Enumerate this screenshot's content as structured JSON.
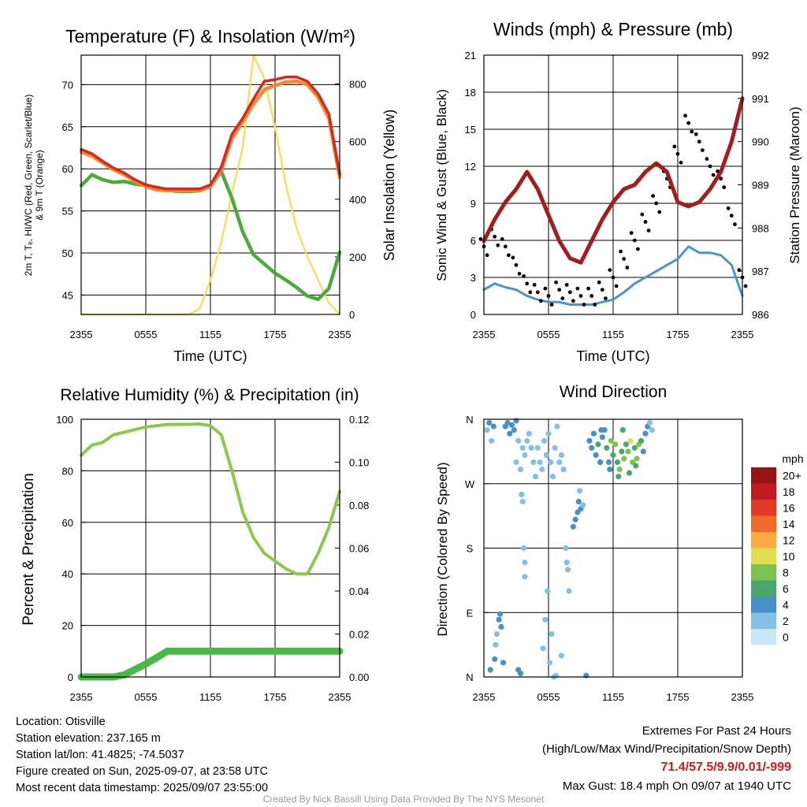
{
  "time_ticks": [
    "2355",
    "0555",
    "1155",
    "1755",
    "2355"
  ],
  "panels": {
    "temperature": {
      "title": "Temperature (F) & Insolation (W/m²)",
      "xlabel": "Time (UTC)",
      "ylabel_line1": "2m T, Tₑ, HI/WC (Red, Green, Scarlet/Blue)",
      "ylabel_line2": "& 9m T (Orange)",
      "ylabel_right": "Solar Insolation (Yellow)"
    },
    "winds": {
      "title": "Winds (mph) & Pressure (mb)",
      "xlabel": "Time (UTC)",
      "ylabel": "Sonic Wind & Gust (Blue, Black)",
      "ylabel_right": "Station Pressure (Maroon)"
    },
    "humidity": {
      "title": "Relative Humidity (%) & Precipitation (in)",
      "ylabel": "Percent & Precipitation"
    },
    "direction": {
      "title": "Wind Direction",
      "ylabel": "Direction (Colored By Speed)",
      "dir_ticks": [
        "N",
        "E",
        "S",
        "W",
        "N"
      ],
      "colorbar_title": "mph",
      "colorbar_labels": [
        "0",
        "2",
        "4",
        "6",
        "8",
        "10",
        "12",
        "14",
        "16",
        "18",
        "20+"
      ],
      "colorbar_colors": [
        "#c8e8f8",
        "#84c0e6",
        "#4a90c8",
        "#4aa66a",
        "#7cc250",
        "#e2dc50",
        "#f9ac46",
        "#f06a2a",
        "#e03a26",
        "#c01c22",
        "#961414"
      ]
    }
  },
  "chart_data": [
    {
      "type": "line",
      "title": "Temperature (F) & Insolation (W/m²)",
      "xlabel": "Time (UTC)",
      "ylabel": "2m T, Tₑ, HI/WC (Red, Green, Scarlet/Blue) & 9m T (Orange)",
      "y2label": "Solar Insolation (Yellow)",
      "ylim": [
        42.7,
        73.5
      ],
      "y2lim": [
        0,
        900
      ],
      "yticks": [
        45,
        50,
        55,
        60,
        65,
        70
      ],
      "y2ticks": [
        0,
        200,
        400,
        600,
        800
      ],
      "x": [
        0,
        1,
        2,
        3,
        4,
        5,
        6,
        7,
        8,
        9,
        10,
        11,
        12,
        13,
        14,
        15,
        16,
        17,
        18,
        19,
        20,
        21,
        22,
        23,
        24
      ],
      "series": [
        {
          "color": "#d42a20",
          "values": [
            62.3,
            61.8,
            60.9,
            60.1,
            59.5,
            58.7,
            58.1,
            57.8,
            57.6,
            57.6,
            57.6,
            57.6,
            58.1,
            60.2,
            64.1,
            66.0,
            68.3,
            70.4,
            70.6,
            70.9,
            70.9,
            70.4,
            68.9,
            66.5,
            59.4
          ]
        },
        {
          "color": "#f38a32",
          "values": [
            62.0,
            61.5,
            60.7,
            59.9,
            59.3,
            58.5,
            57.9,
            57.5,
            57.4,
            57.4,
            57.4,
            57.4,
            57.9,
            59.8,
            63.6,
            65.6,
            67.7,
            69.4,
            69.9,
            70.3,
            70.4,
            70.0,
            68.5,
            66.0,
            59.0
          ]
        },
        {
          "color": "#4aaa3c",
          "values": [
            58.0,
            59.3,
            58.7,
            58.4,
            58.5,
            58.2,
            58.0,
            57.8,
            57.5,
            57.3,
            57.3,
            57.4,
            57.9,
            59.7,
            56.5,
            52.5,
            49.8,
            48.7,
            47.6,
            46.8,
            45.9,
            44.9,
            44.5,
            45.8,
            50.1
          ]
        },
        {
          "color": "#f7dc50",
          "values": [
            0,
            0,
            0,
            0,
            0,
            0,
            0,
            0,
            0,
            0,
            0,
            20,
            120,
            250,
            420,
            580,
            900,
            820,
            650,
            450,
            300,
            200,
            120,
            40,
            0
          ]
        }
      ]
    },
    {
      "type": "line",
      "title": "Winds (mph) & Pressure (mb)",
      "xlabel": "Time (UTC)",
      "ylabel": "Sonic Wind & Gust (Blue, Black)",
      "y2label": "Station Pressure (Maroon)",
      "ylim": [
        0,
        21
      ],
      "y2lim": [
        986,
        992
      ],
      "yticks": [
        0,
        3,
        6,
        9,
        12,
        15,
        18,
        21
      ],
      "y2ticks": [
        986,
        987,
        988,
        989,
        990,
        991,
        992
      ],
      "x": [
        0,
        1,
        2,
        3,
        4,
        5,
        6,
        7,
        8,
        9,
        10,
        11,
        12,
        13,
        14,
        15,
        16,
        17,
        18,
        19,
        20,
        21,
        22,
        23,
        24
      ],
      "series": [
        {
          "color": "#4d94cc",
          "values": [
            2.0,
            2.5,
            2.2,
            2.0,
            1.5,
            1.2,
            1.0,
            1.0,
            0.8,
            0.8,
            0.8,
            1.0,
            1.2,
            1.8,
            2.5,
            3.0,
            3.5,
            4.0,
            4.5,
            5.5,
            5.0,
            5.0,
            4.8,
            4.0,
            1.5
          ]
        },
        {
          "color": "#000000",
          "values": [
            5.5,
            6.3,
            5.5,
            4.0,
            2.5,
            1.8,
            1.5,
            2.0,
            1.8,
            1.5,
            1.5,
            2.0,
            3.0,
            4.5,
            6.0,
            7.5,
            9.0,
            11.0,
            13.0,
            15.5,
            14.0,
            12.0,
            11.0,
            8.0,
            3.0
          ]
        },
        {
          "color": "#a51c1c",
          "values": [
            987.7,
            988.2,
            988.6,
            988.9,
            989.3,
            988.9,
            988.3,
            987.7,
            987.3,
            987.2,
            987.7,
            988.2,
            988.6,
            988.9,
            989.0,
            989.3,
            989.5,
            989.3,
            988.6,
            988.5,
            988.6,
            988.9,
            989.3,
            990.0,
            991.0
          ]
        }
      ]
    },
    {
      "type": "line",
      "title": "Relative Humidity (%) & Precipitation (in)",
      "ylabel": "Percent & Precipitation",
      "ylim": [
        0,
        100
      ],
      "y2lim": [
        0,
        0.12
      ],
      "yticks": [
        0,
        20,
        40,
        60,
        80,
        100
      ],
      "y2ticks": [
        0,
        0.02,
        0.04,
        0.06,
        0.08,
        0.1,
        0.12
      ],
      "x": [
        0,
        1,
        2,
        3,
        4,
        5,
        6,
        7,
        8,
        9,
        10,
        11,
        12,
        13,
        14,
        15,
        16,
        17,
        18,
        19,
        20,
        21,
        22,
        23,
        24
      ],
      "series": [
        {
          "color": "#8cc84c",
          "values": [
            86,
            90,
            91,
            94,
            95,
            96,
            97,
            97.5,
            98,
            98,
            98,
            98.2,
            97.5,
            94,
            80,
            64,
            54,
            48,
            45,
            42,
            40,
            40,
            48,
            58,
            72
          ]
        },
        {
          "color": "#4ab848",
          "values": [
            0,
            0,
            0,
            0,
            0.001,
            0.0035,
            0.006,
            0.009,
            0.012,
            0.012,
            0.012,
            0.012,
            0.012,
            0.012,
            0.012,
            0.012,
            0.012,
            0.012,
            0.012,
            0.012,
            0.012,
            0.012,
            0.012,
            0.012,
            0.012
          ]
        }
      ]
    },
    {
      "type": "scatter",
      "title": "Wind Direction",
      "ylabel": "Direction (Colored By Speed)",
      "yticks": [
        "N",
        "E",
        "S",
        "W",
        "N"
      ],
      "colorbar": {
        "title": "mph",
        "levels": [
          "0",
          "2",
          "4",
          "6",
          "8",
          "10",
          "12",
          "14",
          "16",
          "18",
          "20+"
        ]
      },
      "points": [
        {
          "x": 0.3,
          "dir": 345,
          "speed": 2
        },
        {
          "x": 0.5,
          "dir": 355,
          "speed": 4
        },
        {
          "x": 0.7,
          "dir": 330,
          "speed": 2
        },
        {
          "x": 0.9,
          "dir": 350,
          "speed": 3
        },
        {
          "x": 1.0,
          "dir": 25,
          "speed": 3
        },
        {
          "x": 1.1,
          "dir": 45,
          "speed": 2
        },
        {
          "x": 1.2,
          "dir": 60,
          "speed": 2
        },
        {
          "x": 1.4,
          "dir": 80,
          "speed": 3
        },
        {
          "x": 1.5,
          "dir": 88,
          "speed": 4
        },
        {
          "x": 1.6,
          "dir": 70,
          "speed": 3
        },
        {
          "x": 1.8,
          "dir": 20,
          "speed": 4
        },
        {
          "x": 0.6,
          "dir": 10,
          "speed": 4
        },
        {
          "x": 2.0,
          "dir": 350,
          "speed": 4
        },
        {
          "x": 2.2,
          "dir": 355,
          "speed": 3
        },
        {
          "x": 2.4,
          "dir": 340,
          "speed": 4
        },
        {
          "x": 2.6,
          "dir": 352,
          "speed": 4
        },
        {
          "x": 2.8,
          "dir": 345,
          "speed": 3
        },
        {
          "x": 3.0,
          "dir": 358,
          "speed": 4
        },
        {
          "x": 3.2,
          "dir": 10,
          "speed": 3
        },
        {
          "x": 3.4,
          "dir": 5,
          "speed": 3
        },
        {
          "x": 3.0,
          "dir": 300,
          "speed": 2
        },
        {
          "x": 3.2,
          "dir": 330,
          "speed": 2
        },
        {
          "x": 3.4,
          "dir": 290,
          "speed": 2
        },
        {
          "x": 3.6,
          "dir": 320,
          "speed": 1
        },
        {
          "x": 3.8,
          "dir": 310,
          "speed": 2
        },
        {
          "x": 4.0,
          "dir": 330,
          "speed": 2
        },
        {
          "x": 4.2,
          "dir": 340,
          "speed": 2
        },
        {
          "x": 4.4,
          "dir": 320,
          "speed": 1
        },
        {
          "x": 3.5,
          "dir": 255,
          "speed": 1
        },
        {
          "x": 3.6,
          "dir": 245,
          "speed": 1
        },
        {
          "x": 3.7,
          "dir": 180,
          "speed": 1
        },
        {
          "x": 3.8,
          "dir": 160,
          "speed": 1
        },
        {
          "x": 3.8,
          "dir": 140,
          "speed": 1
        },
        {
          "x": 4.6,
          "dir": 300,
          "speed": 2
        },
        {
          "x": 4.8,
          "dir": 280,
          "speed": 1
        },
        {
          "x": 5.0,
          "dir": 320,
          "speed": 2
        },
        {
          "x": 5.2,
          "dir": 300,
          "speed": 2
        },
        {
          "x": 5.4,
          "dir": 290,
          "speed": 1
        },
        {
          "x": 5.6,
          "dir": 330,
          "speed": 2
        },
        {
          "x": 5.8,
          "dir": 310,
          "speed": 1
        },
        {
          "x": 6.0,
          "dir": 340,
          "speed": 1
        },
        {
          "x": 6.2,
          "dir": 300,
          "speed": 1
        },
        {
          "x": 6.4,
          "dir": 280,
          "speed": 1
        },
        {
          "x": 6.6,
          "dir": 320,
          "speed": 2
        },
        {
          "x": 6.8,
          "dir": 350,
          "speed": 1
        },
        {
          "x": 7.0,
          "dir": 300,
          "speed": 1
        },
        {
          "x": 7.2,
          "dir": 310,
          "speed": 1
        },
        {
          "x": 7.4,
          "dir": 290,
          "speed": 2
        },
        {
          "x": 5.5,
          "dir": 40,
          "speed": 1
        },
        {
          "x": 5.7,
          "dir": 80,
          "speed": 1
        },
        {
          "x": 5.9,
          "dir": 120,
          "speed": 1
        },
        {
          "x": 6.1,
          "dir": 20,
          "speed": 1
        },
        {
          "x": 6.3,
          "dir": 60,
          "speed": 1
        },
        {
          "x": 6.5,
          "dir": 0,
          "speed": 1
        },
        {
          "x": 6.7,
          "dir": 2,
          "speed": 1
        },
        {
          "x": 7.2,
          "dir": 30,
          "speed": 1
        },
        {
          "x": 7.6,
          "dir": 180,
          "speed": 1
        },
        {
          "x": 7.7,
          "dir": 160,
          "speed": 1
        },
        {
          "x": 7.8,
          "dir": 150,
          "speed": 1
        },
        {
          "x": 7.9,
          "dir": 120,
          "speed": 1
        },
        {
          "x": 8.3,
          "dir": 210,
          "speed": 3
        },
        {
          "x": 8.5,
          "dir": 220,
          "speed": 4
        },
        {
          "x": 8.7,
          "dir": 230,
          "speed": 3
        },
        {
          "x": 8.8,
          "dir": 245,
          "speed": 4
        },
        {
          "x": 9.0,
          "dir": 235,
          "speed": 3
        },
        {
          "x": 9.2,
          "dir": 240,
          "speed": 2
        },
        {
          "x": 8.9,
          "dir": 260,
          "speed": 2
        },
        {
          "x": 9.5,
          "dir": 2,
          "speed": 3
        },
        {
          "x": 9.8,
          "dir": 330,
          "speed": 4
        },
        {
          "x": 10.0,
          "dir": 320,
          "speed": 4
        },
        {
          "x": 10.2,
          "dir": 340,
          "speed": 4
        },
        {
          "x": 10.4,
          "dir": 310,
          "speed": 4
        },
        {
          "x": 10.6,
          "dir": 325,
          "speed": 6
        },
        {
          "x": 10.8,
          "dir": 300,
          "speed": 4
        },
        {
          "x": 11.0,
          "dir": 335,
          "speed": 4
        },
        {
          "x": 11.2,
          "dir": 345,
          "speed": 4
        },
        {
          "x": 11.4,
          "dir": 320,
          "speed": 6
        },
        {
          "x": 11.6,
          "dir": 300,
          "speed": 4
        },
        {
          "x": 11.8,
          "dir": 330,
          "speed": 8
        },
        {
          "x": 12.0,
          "dir": 310,
          "speed": 6
        },
        {
          "x": 12.2,
          "dir": 325,
          "speed": 8
        },
        {
          "x": 12.4,
          "dir": 300,
          "speed": 6
        },
        {
          "x": 12.6,
          "dir": 290,
          "speed": 8
        },
        {
          "x": 12.8,
          "dir": 315,
          "speed": 6
        },
        {
          "x": 13.0,
          "dir": 305,
          "speed": 8
        },
        {
          "x": 13.2,
          "dir": 325,
          "speed": 6
        },
        {
          "x": 13.4,
          "dir": 315,
          "speed": 8
        },
        {
          "x": 13.6,
          "dir": 330,
          "speed": 10
        },
        {
          "x": 13.8,
          "dir": 300,
          "speed": 8
        },
        {
          "x": 14.0,
          "dir": 320,
          "speed": 6
        },
        {
          "x": 14.2,
          "dir": 305,
          "speed": 8
        },
        {
          "x": 14.4,
          "dir": 325,
          "speed": 8
        },
        {
          "x": 14.6,
          "dir": 330,
          "speed": 6
        },
        {
          "x": 14.8,
          "dir": 315,
          "speed": 4
        },
        {
          "x": 15.0,
          "dir": 340,
          "speed": 4
        },
        {
          "x": 15.2,
          "dir": 350,
          "speed": 4
        },
        {
          "x": 15.4,
          "dir": 355,
          "speed": 2
        },
        {
          "x": 15.6,
          "dir": 345,
          "speed": 2
        },
        {
          "x": 12.5,
          "dir": 280,
          "speed": 6
        },
        {
          "x": 13.5,
          "dir": 285,
          "speed": 6
        },
        {
          "x": 11.7,
          "dir": 290,
          "speed": 4
        },
        {
          "x": 10.9,
          "dir": 345,
          "speed": 4
        },
        {
          "x": 12.9,
          "dir": 345,
          "speed": 6
        },
        {
          "x": 14.1,
          "dir": 295,
          "speed": 6
        }
      ]
    }
  ],
  "footer": {
    "location": "Location: Otisville",
    "elevation": "Station elevation: 237.165 m",
    "latlon": "Station lat/lon: 41.4825; -74.5037",
    "created": "Figure created on Sun, 2025-09-07, at 23:58 UTC",
    "timestamp": "Most recent data timestamp: 2025/09/07 23:55:00",
    "extremes_title": "Extremes For Past 24 Hours",
    "extremes_subtitle": "(High/Low/Max Wind/Precipitation/Snow Depth)",
    "extremes_values": "71.4/57.5/9.9/0.01/-999",
    "max_gust": "Max Gust: 18.4 mph On 09/07 at 1940 UTC",
    "credit": "Created By Nick Bassill Using Data Provided By The NYS Mesonet"
  }
}
